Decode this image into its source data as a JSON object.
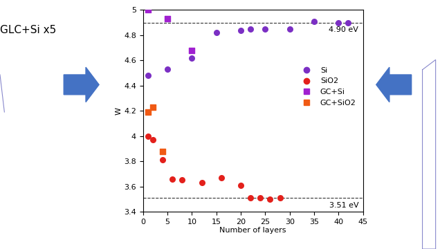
{
  "chart_data": {
    "type": "scatter",
    "x_label": "Number of layers",
    "y_label": "W",
    "xlim": [
      0,
      45
    ],
    "xticks": [
      0,
      5,
      10,
      15,
      20,
      25,
      30,
      35,
      40,
      45
    ],
    "ylim": [
      3.4,
      5
    ],
    "yticks": [
      3.4,
      3.6,
      3.8,
      4,
      4.2,
      4.4,
      4.6,
      4.8,
      5
    ],
    "grid": false,
    "legend": "center right",
    "reference_lines": [
      {
        "value": 4.9,
        "label": "4.90 eV"
      },
      {
        "value": 3.51,
        "label": "3.51 eV"
      }
    ],
    "series": [
      {
        "name": "Si",
        "color": "#7b2fc4",
        "marker": "circle",
        "x": [
          1,
          5,
          10,
          15,
          20,
          22,
          25,
          30,
          35,
          40,
          42
        ],
        "values": [
          4.48,
          4.53,
          4.62,
          4.82,
          4.84,
          4.85,
          4.85,
          4.85,
          4.91,
          4.9,
          4.9
        ]
      },
      {
        "name": "SiO2",
        "color": "#e3201b",
        "marker": "circle",
        "x": [
          1,
          2,
          4,
          6,
          8,
          12,
          16,
          20,
          22,
          24,
          26,
          28
        ],
        "values": [
          4.0,
          3.97,
          3.81,
          3.66,
          3.65,
          3.63,
          3.67,
          3.61,
          3.51,
          3.51,
          3.5,
          3.51
        ]
      },
      {
        "name": "GC+Si",
        "color": "#a020d0",
        "marker": "square",
        "x": [
          1,
          5,
          10
        ],
        "values": [
          5.0,
          4.93,
          4.68
        ]
      },
      {
        "name": "GC+SiO2",
        "color": "#f05a14",
        "marker": "square",
        "x": [
          1,
          2,
          4
        ],
        "values": [
          4.19,
          4.23,
          3.88
        ]
      }
    ]
  },
  "side_text": "GLC+Si x5"
}
